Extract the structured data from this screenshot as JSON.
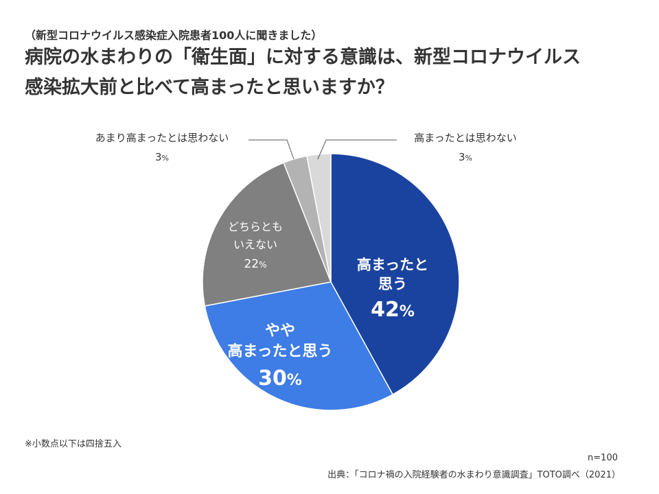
{
  "header": {
    "subtitle": "（新型コロナウイルス感染症入院患者100人に聞きました）",
    "title_line1": "病院の水まわりの「衛生面」に対する意識は、新型コロナウイルス",
    "title_line2": "感染拡大前と比べて高まったと思いますか？"
  },
  "chart_data": {
    "type": "pie",
    "unit": "%",
    "slices": [
      {
        "label": "高まったと思う",
        "value": 42,
        "color": "#1a43a0"
      },
      {
        "label": "やや高まったと思う",
        "value": 30,
        "color": "#3e7ce6"
      },
      {
        "label": "どちらともいえない",
        "value": 22,
        "color": "#808080"
      },
      {
        "label": "あまり高まったとは思わない",
        "value": 3,
        "color": "#b3b3b3"
      },
      {
        "label": "高まったとは思わない",
        "value": 3,
        "color": "#d9d9d9"
      }
    ]
  },
  "footer": {
    "note": "※小数点以下は四捨五入",
    "sample": "n=100",
    "source": "出典：「コロナ禍の入院経験者の水まわり意識調査」TOTO調べ（2021）"
  }
}
